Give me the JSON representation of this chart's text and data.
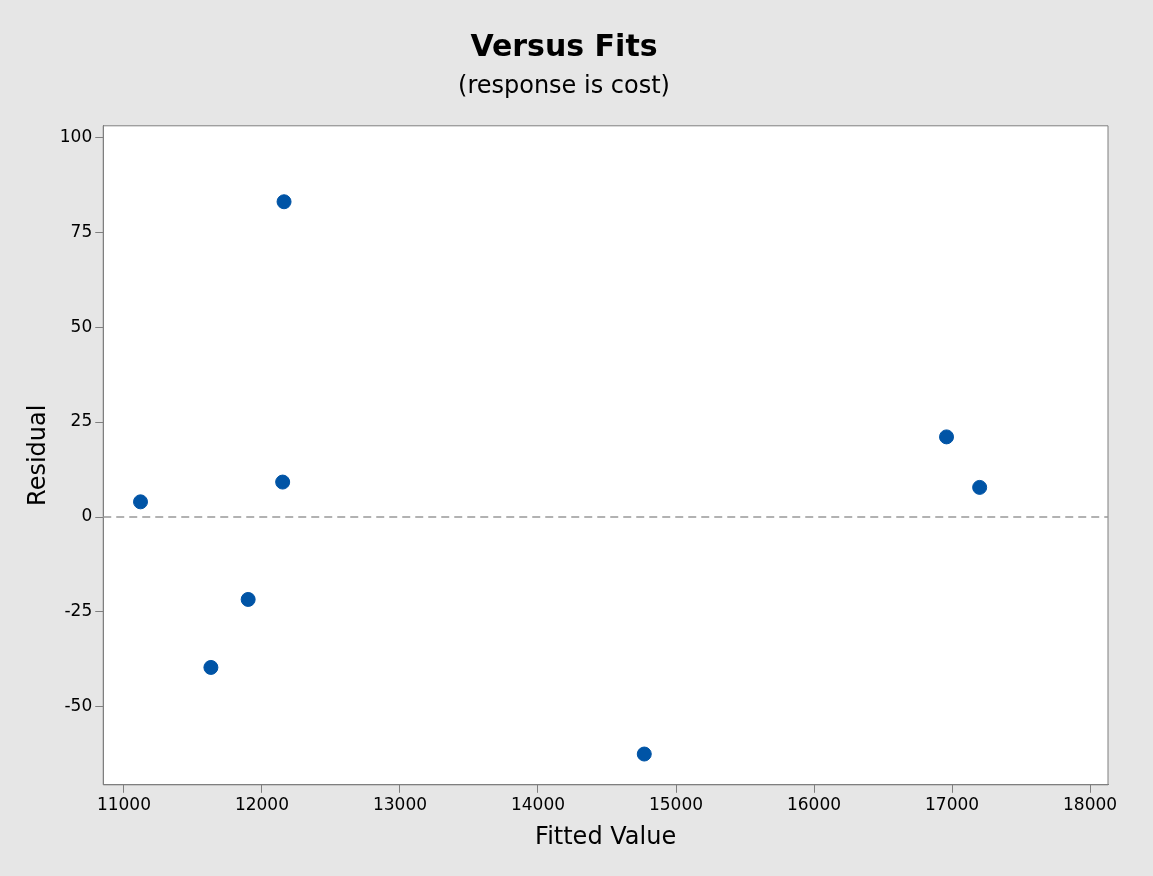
{
  "chart_data": {
    "type": "scatter",
    "title": "Versus Fits",
    "subtitle": "(response is cost)",
    "xlabel": "Fitted Value",
    "ylabel": "Residual",
    "series": [
      {
        "color": "#0054a6",
        "x": [
          11120,
          11630,
          11900,
          12150,
          12160,
          14770,
          16960,
          17200
        ],
        "values": [
          4,
          -39.6,
          -21.7,
          9.2,
          83,
          -62.4,
          21.1,
          7.8
        ]
      }
    ],
    "xlim": [
      10850,
      18130
    ],
    "xticks": [
      11000,
      12000,
      13000,
      14000,
      15000,
      16000,
      17000,
      18000
    ],
    "ylim": [
      -70.5,
      103
    ],
    "yticks": [
      -50,
      -25,
      0,
      25,
      50,
      75,
      100
    ],
    "ref_lines": [
      {
        "axis": "y",
        "value": 0,
        "color": "#999999",
        "line_style": "dashed"
      }
    ],
    "grid": false,
    "legend": false,
    "marker": "circle"
  }
}
